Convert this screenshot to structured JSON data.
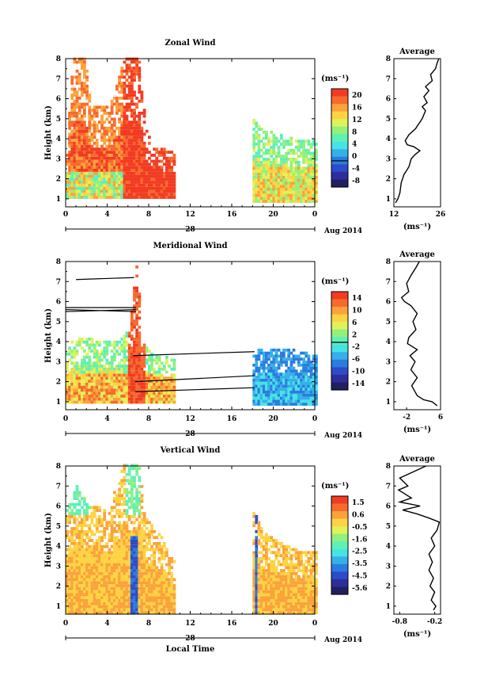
{
  "chart_data": [
    {
      "type": "heatmap",
      "title": "Zonal Wind",
      "ylabel": "Height (km)",
      "xlim": [
        0,
        24
      ],
      "ylim": [
        0.6,
        8
      ],
      "xticks": [
        "0",
        "4",
        "8",
        "12",
        "16",
        "20",
        "0"
      ],
      "yticks": [
        "1",
        "2",
        "3",
        "4",
        "5",
        "6",
        "7",
        "8"
      ],
      "date_label": "28",
      "month_label": "Aug 2014",
      "colorbar": {
        "unit": "(ms⁻¹)",
        "min": -8,
        "max": 22,
        "ticks": [
          "20",
          "16",
          "12",
          "8",
          "4",
          "0",
          "-4",
          "-8"
        ],
        "marked_value": 0
      },
      "coverage_segments": [
        {
          "x_start": 0,
          "x_end": 10.5,
          "y_bottom": 1.0,
          "y_top_profile": [
            [
              0,
              3.4
            ],
            [
              0.6,
              8
            ],
            [
              1.8,
              8
            ],
            [
              2.4,
              5.5
            ],
            [
              4.2,
              5.6
            ],
            [
              5.6,
              8
            ],
            [
              7,
              8
            ],
            [
              7.6,
              4.5
            ],
            [
              8.4,
              3.4
            ],
            [
              10.5,
              3.4
            ]
          ]
        },
        {
          "x_start": 18.0,
          "x_end": 24,
          "y_bottom": 0.8,
          "y_top_profile": [
            [
              18,
              5.0
            ],
            [
              18.8,
              4.4
            ],
            [
              20,
              4.2
            ],
            [
              21,
              4.1
            ],
            [
              22,
              3.9
            ],
            [
              24,
              3.8
            ]
          ]
        }
      ],
      "average_profile": {
        "title": "Average",
        "xlim": [
          12,
          26
        ],
        "xticks": [
          "12",
          "26"
        ],
        "xlabel": "(ms⁻¹)",
        "points": [
          [
            12.5,
            0.8
          ],
          [
            13.2,
            1.0
          ],
          [
            13.8,
            1.3
          ],
          [
            14.2,
            1.8
          ],
          [
            15,
            2.2
          ],
          [
            16.5,
            2.6
          ],
          [
            17.2,
            3.0
          ],
          [
            18.3,
            3.2
          ],
          [
            19.8,
            3.4
          ],
          [
            18,
            3.6
          ],
          [
            16,
            3.7
          ],
          [
            15.4,
            3.9
          ],
          [
            16.5,
            4.2
          ],
          [
            18.5,
            4.5
          ],
          [
            20.5,
            5.0
          ],
          [
            21.5,
            5.4
          ],
          [
            20.5,
            5.6
          ],
          [
            22,
            5.8
          ],
          [
            21,
            6.1
          ],
          [
            22.5,
            6.4
          ],
          [
            21.5,
            6.6
          ],
          [
            23.5,
            6.9
          ],
          [
            23,
            7.2
          ],
          [
            24.5,
            7.5
          ],
          [
            25,
            7.8
          ],
          [
            25.5,
            8.0
          ]
        ]
      }
    },
    {
      "type": "heatmap",
      "title": "Meridional Wind",
      "ylabel": "Height (km)",
      "xlim": [
        0,
        24
      ],
      "ylim": [
        0.6,
        8
      ],
      "xticks": [
        "0",
        "4",
        "8",
        "12",
        "16",
        "20",
        "0"
      ],
      "yticks": [
        "1",
        "2",
        "3",
        "4",
        "5",
        "6",
        "7",
        "8"
      ],
      "date_label": "28",
      "month_label": "Aug 2014",
      "colorbar": {
        "unit": "(ms⁻¹)",
        "min": -15,
        "max": 16,
        "ticks": [
          "14",
          "10",
          "6",
          "2",
          "-2",
          "-6",
          "-10",
          "-14"
        ],
        "marked_value": 0
      },
      "coverage_segments": [
        {
          "x_start": 0,
          "x_end": 10.5,
          "y_bottom": 0.9,
          "y_top_profile": [
            [
              0,
              3.5
            ],
            [
              0.6,
              4.0
            ],
            [
              1.5,
              4.2
            ],
            [
              3,
              4.0
            ],
            [
              5,
              4.0
            ],
            [
              6,
              4.5
            ],
            [
              6.8,
              8
            ],
            [
              7.2,
              4.0
            ],
            [
              8.5,
              3.2
            ],
            [
              10.5,
              3.2
            ]
          ]
        },
        {
          "x_start": 18.0,
          "x_end": 24,
          "y_bottom": 0.8,
          "y_top_profile": [
            [
              18,
              3.5
            ],
            [
              20,
              3.6
            ],
            [
              22,
              3.5
            ],
            [
              24,
              3.3
            ]
          ]
        }
      ],
      "average_profile": {
        "title": "Average",
        "xlim": [
          -5,
          6
        ],
        "xticks": [
          "-2",
          "6"
        ],
        "xlabel": "(ms⁻¹)",
        "points": [
          [
            5.2,
            0.8
          ],
          [
            4,
            1.0
          ],
          [
            2,
            1.1
          ],
          [
            0.5,
            1.3
          ],
          [
            -0.8,
            1.8
          ],
          [
            0.5,
            2.2
          ],
          [
            -1,
            2.6
          ],
          [
            0,
            3.0
          ],
          [
            -1.2,
            3.3
          ],
          [
            0.5,
            3.6
          ],
          [
            -1.8,
            3.9
          ],
          [
            -1.5,
            4.2
          ],
          [
            0.2,
            4.6
          ],
          [
            -0.5,
            5.0
          ],
          [
            0.5,
            5.4
          ],
          [
            -1,
            5.8
          ],
          [
            -2.5,
            6.0
          ],
          [
            -3.2,
            6.2
          ],
          [
            -1.5,
            6.5
          ],
          [
            -2,
            6.9
          ],
          [
            -1,
            7.3
          ],
          [
            0.2,
            7.7
          ],
          [
            1,
            8.0
          ]
        ]
      }
    },
    {
      "type": "heatmap",
      "title": "Vertical Wind",
      "xlabel": "Local Time",
      "ylabel": "Height (km)",
      "xlim": [
        0,
        24
      ],
      "ylim": [
        0.6,
        8
      ],
      "xticks": [
        "0",
        "4",
        "8",
        "12",
        "16",
        "20",
        "0"
      ],
      "yticks": [
        "1",
        "2",
        "3",
        "4",
        "5",
        "6",
        "7",
        "8"
      ],
      "date_label": "28",
      "month_label": "Aug 2014",
      "colorbar": {
        "unit": "(ms⁻¹)",
        "min": -6.1,
        "max": 2.0,
        "ticks": [
          "1.5",
          "0.6",
          "-0.5",
          "-1.6",
          "-2.5",
          "-3.5",
          "-4.5",
          "-5.6"
        ]
      },
      "coverage_segments": [
        {
          "x_start": 0,
          "x_end": 10.5,
          "y_bottom": 0.6,
          "y_top_profile": [
            [
              0,
              5.8
            ],
            [
              1,
              7.0
            ],
            [
              2,
              6.0
            ],
            [
              4,
              5.8
            ],
            [
              5.5,
              8
            ],
            [
              7,
              8
            ],
            [
              7.5,
              5.5
            ],
            [
              9,
              4.5
            ],
            [
              10.5,
              3.0
            ]
          ]
        },
        {
          "x_start": 18.0,
          "x_end": 24,
          "y_bottom": 0.6,
          "y_top_profile": [
            [
              18,
              5.8
            ],
            [
              19,
              4.6
            ],
            [
              21,
              4.0
            ],
            [
              23,
              3.6
            ],
            [
              24,
              3.6
            ]
          ]
        }
      ],
      "average_profile": {
        "title": "Average",
        "xlim": [
          -0.9,
          -0.1
        ],
        "xticks": [
          "-0.8",
          "-0.2"
        ],
        "xlabel": "(ms⁻¹)",
        "points": [
          [
            -0.22,
            0.8
          ],
          [
            -0.18,
            1.0
          ],
          [
            -0.26,
            1.3
          ],
          [
            -0.2,
            1.7
          ],
          [
            -0.28,
            2.0
          ],
          [
            -0.22,
            2.4
          ],
          [
            -0.3,
            2.8
          ],
          [
            -0.24,
            3.2
          ],
          [
            -0.3,
            3.6
          ],
          [
            -0.2,
            4.0
          ],
          [
            -0.26,
            4.4
          ],
          [
            -0.16,
            4.8
          ],
          [
            -0.12,
            5.2
          ],
          [
            -0.3,
            5.4
          ],
          [
            -0.5,
            5.6
          ],
          [
            -0.75,
            5.8
          ],
          [
            -0.45,
            6.0
          ],
          [
            -0.8,
            6.2
          ],
          [
            -0.6,
            6.4
          ],
          [
            -0.82,
            6.8
          ],
          [
            -0.66,
            7.0
          ],
          [
            -0.8,
            7.4
          ],
          [
            -0.5,
            7.8
          ],
          [
            -0.35,
            8.0
          ]
        ]
      }
    }
  ]
}
